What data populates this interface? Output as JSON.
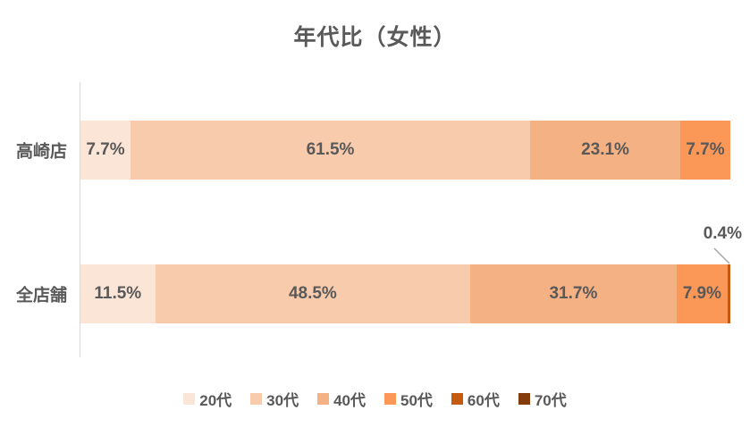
{
  "chart_data": {
    "type": "bar",
    "subtype": "horizontal-stacked-100pct",
    "title": "年代比（女性）",
    "categories": [
      "高崎店",
      "全店舗"
    ],
    "series": [
      {
        "name": "20代",
        "color": "#FBE5D6",
        "values": [
          7.7,
          11.5
        ]
      },
      {
        "name": "30代",
        "color": "#F8CBAD",
        "values": [
          61.5,
          48.5
        ]
      },
      {
        "name": "40代",
        "color": "#F4B183",
        "values": [
          23.1,
          31.7
        ]
      },
      {
        "name": "50代",
        "color": "#FB9757",
        "values": [
          7.7,
          7.9
        ]
      },
      {
        "name": "60代",
        "color": "#C55A11",
        "values": [
          0.0,
          0.4
        ]
      },
      {
        "name": "70代",
        "color": "#843C0C",
        "values": [
          0.0,
          0.0
        ]
      }
    ],
    "data_labels": {
      "高崎店": [
        "7.7%",
        "61.5%",
        "23.1%",
        "7.7%"
      ],
      "全店舗": [
        "11.5%",
        "48.5%",
        "31.7%",
        "7.9%",
        "0.4%"
      ]
    },
    "callout": {
      "text": "0.4%",
      "series": "60代",
      "category": "全店舗"
    },
    "legend_position": "bottom",
    "axis": {
      "x_range": [
        0,
        100
      ],
      "grid": false
    },
    "colors": {
      "text": "#595959",
      "axis_line": "#D9D9D9",
      "leader_line": "#A6A6A6",
      "background": "#FFFFFF"
    }
  }
}
